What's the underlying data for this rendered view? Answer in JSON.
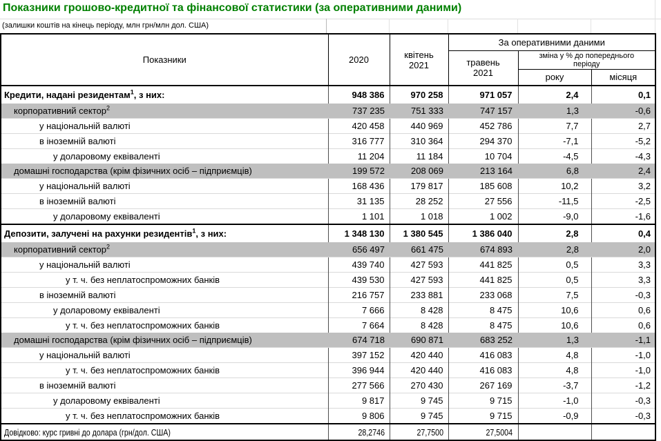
{
  "title": "Показники грошово-кредитної та фінансової статистики (за оперативними даними)",
  "subtitle": "(залишки коштів на кінець періоду, млн грн/млн дол. США)",
  "colors": {
    "title_green": "#008000",
    "row_highlight_gray": "#bfbfbf"
  },
  "table_header": {
    "indicators": "Показники",
    "y2020": "2020",
    "apr": {
      "l1": "квітень",
      "l2": "2021"
    },
    "group_operational": "За оперативними даними",
    "may": {
      "l1": "травень",
      "l2": "2021"
    },
    "change_pct": "зміна у % до попереднього періоду",
    "year": "року",
    "month": "місяця"
  },
  "chart_data": {
    "type": "table",
    "title": "Показники грошово-кредитної та фінансової статистики (за оперативними даними)",
    "subtitle": "(залишки коштів на кінець періоду, млн грн/млн дол. США)",
    "columns": [
      "Показники",
      "2020",
      "квітень 2021",
      "травень 2021 (за оперативними даними)",
      "зміна у % до попереднього періоду: року",
      "зміна у % до попереднього періоду: місяця"
    ],
    "rows": [
      {
        "label": "Кредити, надані резидентам",
        "sup": "1",
        "tail": ", з них:",
        "indent": 0,
        "style": "bold",
        "values": [
          "948 386",
          "970 258",
          "971 057",
          "2,4",
          "0,1"
        ]
      },
      {
        "label": "корпоративний сектор",
        "sup": "2",
        "tail": "",
        "indent": 1,
        "style": "gray",
        "values": [
          "737 235",
          "751 333",
          "747 157",
          "1,3",
          "-0,6"
        ]
      },
      {
        "label": "у національній валюті",
        "sup": "",
        "tail": "",
        "indent": 2,
        "style": "normal",
        "values": [
          "420 458",
          "440 969",
          "452 786",
          "7,7",
          "2,7"
        ]
      },
      {
        "label": "в іноземній валюті",
        "sup": "",
        "tail": "",
        "indent": 2,
        "style": "normal",
        "values": [
          "316 777",
          "310 364",
          "294 370",
          "-7,1",
          "-5,2"
        ]
      },
      {
        "label": "у доларовому еквіваленті",
        "sup": "",
        "tail": "",
        "indent": 3,
        "style": "normal",
        "values": [
          "11 204",
          "11 184",
          "10 704",
          "-4,5",
          "-4,3"
        ]
      },
      {
        "label": "домашні господарства (крім фізичних осіб – підприємців)",
        "sup": "",
        "tail": "",
        "indent": 1,
        "style": "gray",
        "values": [
          "199 572",
          "208 069",
          "213 164",
          "6,8",
          "2,4"
        ]
      },
      {
        "label": "у національній валюті",
        "sup": "",
        "tail": "",
        "indent": 2,
        "style": "normal",
        "values": [
          "168 436",
          "179 817",
          "185 608",
          "10,2",
          "3,2"
        ]
      },
      {
        "label": "в іноземній валюті",
        "sup": "",
        "tail": "",
        "indent": 2,
        "style": "normal",
        "values": [
          "31 135",
          "28 252",
          "27 556",
          "-11,5",
          "-2,5"
        ]
      },
      {
        "label": "у доларовому еквіваленті",
        "sup": "",
        "tail": "",
        "indent": 3,
        "style": "normal",
        "values": [
          "1 101",
          "1 018",
          "1 002",
          "-9,0",
          "-1,6"
        ]
      },
      {
        "label": "Депозити, залучені на рахунки резидентів",
        "sup": "1",
        "tail": ", з них:",
        "indent": 0,
        "style": "bold",
        "values": [
          "1 348 130",
          "1 380 545",
          "1 386 040",
          "2,8",
          "0,4"
        ]
      },
      {
        "label": "корпоративний сектор",
        "sup": "2",
        "tail": "",
        "indent": 1,
        "style": "gray",
        "values": [
          "656 497",
          "661 475",
          "674 893",
          "2,8",
          "2,0"
        ]
      },
      {
        "label": "у національній валюті",
        "sup": "",
        "tail": "",
        "indent": 2,
        "style": "normal",
        "values": [
          "439 740",
          "427 593",
          "441 825",
          "0,5",
          "3,3"
        ]
      },
      {
        "label": "у т. ч. без неплатоспроможних банків",
        "sup": "",
        "tail": "",
        "indent": 4,
        "style": "normal",
        "values": [
          "439 530",
          "427 593",
          "441 825",
          "0,5",
          "3,3"
        ]
      },
      {
        "label": "в іноземній валюті",
        "sup": "",
        "tail": "",
        "indent": 2,
        "style": "normal",
        "values": [
          "216 757",
          "233 881",
          "233 068",
          "7,5",
          "-0,3"
        ]
      },
      {
        "label": "у доларовому еквіваленті",
        "sup": "",
        "tail": "",
        "indent": 3,
        "style": "normal",
        "values": [
          "7 666",
          "8 428",
          "8 475",
          "10,6",
          "0,6"
        ]
      },
      {
        "label": "у т. ч. без неплатоспроможних банків",
        "sup": "",
        "tail": "",
        "indent": 4,
        "style": "normal",
        "values": [
          "7 664",
          "8 428",
          "8 475",
          "10,6",
          "0,6"
        ]
      },
      {
        "label": "домашні господарства (крім фізичних осіб – підприємців)",
        "sup": "",
        "tail": "",
        "indent": 1,
        "style": "gray",
        "values": [
          "674 718",
          "690 871",
          "683 252",
          "1,3",
          "-1,1"
        ]
      },
      {
        "label": "у національній валюті",
        "sup": "",
        "tail": "",
        "indent": 2,
        "style": "normal",
        "values": [
          "397 152",
          "420 440",
          "416 083",
          "4,8",
          "-1,0"
        ]
      },
      {
        "label": "у т. ч. без неплатоспроможних банків",
        "sup": "",
        "tail": "",
        "indent": 4,
        "style": "normal",
        "values": [
          "396 944",
          "420 440",
          "416 083",
          "4,8",
          "-1,0"
        ]
      },
      {
        "label": "в іноземній валюті",
        "sup": "",
        "tail": "",
        "indent": 2,
        "style": "normal",
        "values": [
          "277 566",
          "270 430",
          "267 169",
          "-3,7",
          "-1,2"
        ]
      },
      {
        "label": "у доларовому еквіваленті",
        "sup": "",
        "tail": "",
        "indent": 3,
        "style": "normal",
        "values": [
          "9 817",
          "9 745",
          "9 715",
          "-1,0",
          "-0,3"
        ]
      },
      {
        "label": "у т. ч. без неплатоспроможних банків",
        "sup": "",
        "tail": "",
        "indent": 4,
        "style": "normal",
        "values": [
          "9 806",
          "9 745",
          "9 715",
          "-0,9",
          "-0,3"
        ]
      },
      {
        "label": "Довідково: курс гривні до долара (грн/дол. США)",
        "sup": "",
        "tail": "",
        "indent": 0,
        "style": "ref",
        "values": [
          "28,2746",
          "27,7500",
          "27,5004",
          "",
          ""
        ]
      }
    ]
  }
}
